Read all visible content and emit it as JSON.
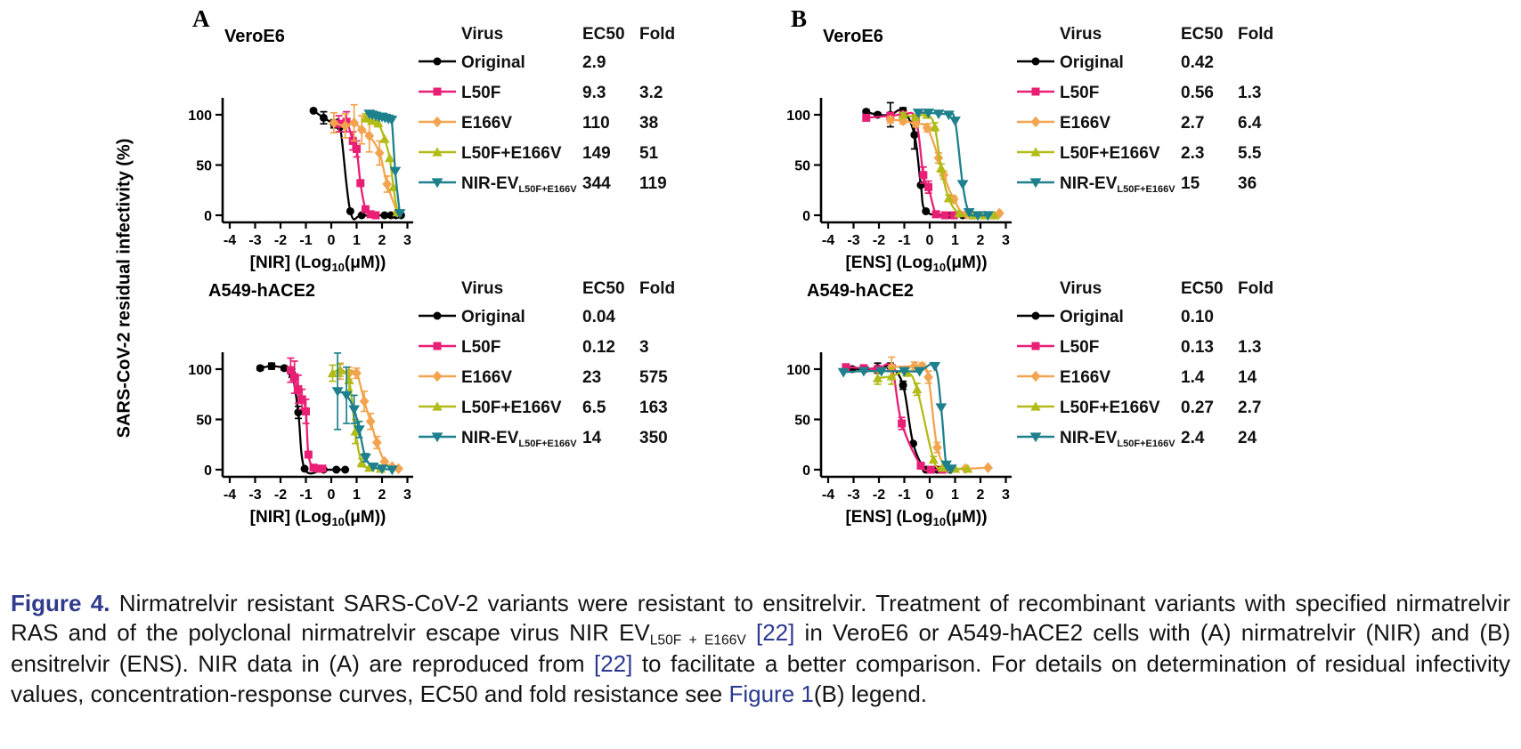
{
  "figure": {
    "panel_a_label": "A",
    "panel_b_label": "B",
    "y_axis_label": "SARS-CoV-2 residual infectivity (%)",
    "legend_headers": {
      "virus": "Virus",
      "ec50": "EC50",
      "fold": "Fold"
    }
  },
  "colors": {
    "original": "#000000",
    "l50f": "#E91E75",
    "e166v": "#F3A44F",
    "l50f_e166v": "#B2BB17",
    "nir_ev": "#1E808D",
    "figure_label": "#2F3B8B",
    "link": "#2B3990",
    "axis": "#000000"
  },
  "chart_data": [
    {
      "type": "line",
      "panel": "A",
      "title": "VeroE6",
      "xlabel": {
        "pre": "[NIR] (Log",
        "sub": "10",
        "post": "(μM))"
      },
      "xticks": [
        -4,
        -3,
        -2,
        -1,
        0,
        1,
        2,
        3
      ],
      "yticks": [
        0,
        50,
        100
      ],
      "xlim": [
        -4,
        3
      ],
      "ylim": [
        0,
        115
      ],
      "series": [
        {
          "name": "Original",
          "name_sub": "",
          "ec50": "2.9",
          "fold": "",
          "color_key": "original",
          "marker": "circle",
          "x": [
            -0.7,
            -0.3,
            0.1,
            0.35,
            0.75,
            1.2,
            2.1,
            2.35,
            2.55,
            2.75
          ],
          "y": [
            104,
            97,
            91,
            88,
            4,
            0,
            0,
            0,
            0,
            0
          ],
          "err": [
            0,
            6,
            4,
            5,
            0,
            0,
            0,
            0,
            0,
            0
          ]
        },
        {
          "name": "L50F",
          "name_sub": "",
          "ec50": "9.3",
          "fold": "3.2",
          "color_key": "l50f",
          "marker": "square",
          "x": [
            0.3,
            0.6,
            0.85,
            1.0,
            1.15,
            1.35,
            1.55,
            1.75
          ],
          "y": [
            91,
            93,
            74,
            66,
            32,
            6,
            1,
            0
          ],
          "err": [
            8,
            10,
            9,
            8,
            0,
            0,
            0,
            0
          ]
        },
        {
          "name": "E166V",
          "name_sub": "",
          "ec50": "110",
          "fold": "38",
          "color_key": "e166v",
          "marker": "diamond",
          "x": [
            0.1,
            0.55,
            0.9,
            1.2,
            1.5,
            1.9,
            2.2,
            2.6
          ],
          "y": [
            92,
            89,
            92,
            85,
            79,
            62,
            31,
            3
          ],
          "err": [
            10,
            12,
            18,
            14,
            16,
            12,
            8,
            0
          ]
        },
        {
          "name": "L50F+E166V",
          "name_sub": "",
          "ec50": "149",
          "fold": "51",
          "color_key": "l50f_e166v",
          "marker": "triangle-up",
          "x": [
            1.35,
            1.6,
            1.85,
            2.1,
            2.3,
            2.45,
            2.6
          ],
          "y": [
            97,
            94,
            92,
            76,
            57,
            28,
            3
          ],
          "err": [
            4,
            3,
            4,
            0,
            0,
            0,
            0
          ]
        },
        {
          "name": "NIR-EV",
          "name_sub": "L50F+E166V",
          "ec50": "344",
          "fold": "119",
          "color_key": "nir_ev",
          "marker": "triangle-down",
          "x": [
            1.5,
            1.62,
            1.75,
            1.88,
            2.0,
            2.12,
            2.25,
            2.38,
            2.52,
            2.7
          ],
          "y": [
            101,
            100,
            99,
            98,
            98,
            97,
            96,
            95,
            44,
            2
          ],
          "err": [
            0,
            0,
            0,
            0,
            0,
            0,
            0,
            0,
            0,
            0
          ]
        }
      ]
    },
    {
      "type": "line",
      "panel": "A",
      "title": "A549-hACE2",
      "xlabel": {
        "pre": "[NIR] (Log",
        "sub": "10",
        "post": "(μM))"
      },
      "xticks": [
        -4,
        -3,
        -2,
        -1,
        0,
        1,
        2,
        3
      ],
      "yticks": [
        0,
        50,
        100
      ],
      "xlim": [
        -4,
        3
      ],
      "ylim": [
        0,
        115
      ],
      "series": [
        {
          "name": "Original",
          "name_sub": "",
          "ec50": "0.04",
          "fold": "",
          "color_key": "original",
          "marker": "circle",
          "x": [
            -2.8,
            -2.35,
            -1.85,
            -1.55,
            -1.3,
            -1.05,
            -0.3,
            0.2,
            0.55
          ],
          "y": [
            101,
            103,
            101,
            96,
            57,
            1,
            0,
            0,
            0
          ],
          "err": [
            2,
            3,
            2,
            4,
            6,
            0,
            0,
            0,
            0
          ]
        },
        {
          "name": "L50F",
          "name_sub": "",
          "ec50": "0.12",
          "fold": "3",
          "color_key": "l50f",
          "marker": "square",
          "x": [
            -1.6,
            -1.45,
            -1.3,
            -1.15,
            -1.0,
            -0.9,
            -0.7,
            -0.5,
            -0.35
          ],
          "y": [
            99,
            92,
            80,
            70,
            58,
            15,
            2,
            1,
            1
          ],
          "err": [
            12,
            16,
            14,
            10,
            12,
            0,
            0,
            0,
            0
          ]
        },
        {
          "name": "E166V",
          "name_sub": "",
          "ec50": "23",
          "fold": "575",
          "color_key": "e166v",
          "marker": "diamond",
          "x": [
            0.35,
            0.7,
            1.0,
            1.3,
            1.55,
            1.8,
            2.1,
            2.4,
            2.65
          ],
          "y": [
            98,
            96,
            96,
            68,
            48,
            27,
            8,
            3,
            1
          ],
          "err": [
            8,
            6,
            5,
            10,
            8,
            6,
            0,
            0,
            0
          ]
        },
        {
          "name": "L50F+E166V",
          "name_sub": "",
          "ec50": "6.5",
          "fold": "163",
          "color_key": "l50f_e166v",
          "marker": "triangle-up",
          "x": [
            0.05,
            0.35,
            0.7,
            0.95,
            1.2,
            1.5,
            1.95
          ],
          "y": [
            96,
            99,
            89,
            38,
            7,
            2,
            1
          ],
          "err": [
            8,
            6,
            10,
            12,
            4,
            0,
            0
          ]
        },
        {
          "name": "NIR-EV",
          "name_sub": "L50F+E166V",
          "ec50": "14",
          "fold": "350",
          "color_key": "nir_ev",
          "marker": "triangle-down",
          "x": [
            0.25,
            0.6,
            0.9,
            1.1,
            1.35,
            1.65,
            2.0,
            2.4
          ],
          "y": [
            78,
            74,
            60,
            40,
            12,
            3,
            1,
            0
          ],
          "err": [
            38,
            28,
            14,
            8,
            4,
            0,
            0,
            0
          ]
        }
      ]
    },
    {
      "type": "line",
      "panel": "B",
      "title": "VeroE6",
      "xlabel": {
        "pre": "[ENS] (Log",
        "sub": "10",
        "post": "(μM))"
      },
      "xticks": [
        -4,
        -3,
        -2,
        -1,
        0,
        1,
        2,
        3
      ],
      "yticks": [
        0,
        50,
        100
      ],
      "xlim": [
        -4,
        3
      ],
      "ylim": [
        0,
        115
      ],
      "series": [
        {
          "name": "Original",
          "name_sub": "",
          "ec50": "0.42",
          "fold": "",
          "color_key": "original",
          "marker": "circle",
          "x": [
            -2.5,
            -2.05,
            -1.55,
            -1.05,
            -0.6,
            -0.35,
            -0.15,
            0.7,
            1.3
          ],
          "y": [
            103,
            100,
            100,
            104,
            80,
            30,
            4,
            0,
            0
          ],
          "err": [
            2,
            2,
            12,
            3,
            14,
            0,
            0,
            0,
            0
          ]
        },
        {
          "name": "L50F",
          "name_sub": "",
          "ec50": "0.56",
          "fold": "1.3",
          "color_key": "l50f",
          "marker": "square",
          "x": [
            -2.5,
            -1.55,
            -1.05,
            -0.55,
            -0.25,
            -0.05,
            0.25,
            0.6,
            0.95
          ],
          "y": [
            97,
            99,
            100,
            96,
            40,
            28,
            1,
            0,
            0
          ],
          "err": [
            3,
            3,
            2,
            3,
            8,
            6,
            0,
            0,
            0
          ]
        },
        {
          "name": "E166V",
          "name_sub": "",
          "ec50": "2.7",
          "fold": "6.4",
          "color_key": "e166v",
          "marker": "diamond",
          "x": [
            -1.55,
            -1.05,
            -0.55,
            -0.1,
            0.35,
            0.55,
            0.95,
            1.45,
            2.75
          ],
          "y": [
            95,
            94,
            91,
            87,
            57,
            40,
            16,
            1,
            2
          ],
          "err": [
            3,
            3,
            3,
            4,
            5,
            4,
            3,
            0,
            0
          ]
        },
        {
          "name": "L50F+E166V",
          "name_sub": "",
          "ec50": "2.3",
          "fold": "5.5",
          "color_key": "l50f_e166v",
          "marker": "triangle-up",
          "x": [
            -1.05,
            -0.55,
            -0.1,
            0.2,
            0.45,
            0.75,
            1.15,
            1.7,
            2.15,
            2.55
          ],
          "y": [
            100,
            98,
            100,
            88,
            47,
            17,
            2,
            0,
            0,
            0
          ],
          "err": [
            2,
            2,
            3,
            4,
            4,
            3,
            0,
            0,
            0,
            0
          ]
        },
        {
          "name": "NIR-EV",
          "name_sub": "L50F+E166V",
          "ec50": "15",
          "fold": "36",
          "color_key": "nir_ev",
          "marker": "triangle-down",
          "x": [
            -0.45,
            -0.05,
            0.35,
            0.75,
            1.0,
            1.3,
            1.55,
            1.9,
            2.3
          ],
          "y": [
            102,
            102,
            101,
            100,
            94,
            31,
            3,
            0,
            0
          ],
          "err": [
            0,
            0,
            0,
            0,
            0,
            0,
            0,
            0,
            0
          ]
        }
      ]
    },
    {
      "type": "line",
      "panel": "B",
      "title": "A549-hACE2",
      "xlabel": {
        "pre": "[ENS] (Log",
        "sub": "10",
        "post": "(μM))"
      },
      "xticks": [
        -4,
        -3,
        -2,
        -1,
        0,
        1,
        2,
        3
      ],
      "yticks": [
        0,
        50,
        100
      ],
      "xlim": [
        -4,
        3
      ],
      "ylim": [
        0,
        115
      ],
      "series": [
        {
          "name": "Original",
          "name_sub": "",
          "ec50": "0.10",
          "fold": "",
          "color_key": "original",
          "marker": "circle",
          "x": [
            -3.05,
            -2.55,
            -2.05,
            -1.55,
            -1.05,
            -0.65,
            -0.15,
            0.3,
            0.8
          ],
          "y": [
            100,
            100,
            101,
            102,
            84,
            26,
            0,
            0,
            0
          ],
          "err": [
            2,
            2,
            5,
            4,
            4,
            0,
            0,
            0,
            0
          ]
        },
        {
          "name": "L50F",
          "name_sub": "",
          "ec50": "0.13",
          "fold": "1.3",
          "color_key": "l50f",
          "marker": "square",
          "x": [
            -3.3,
            -2.6,
            -2.05,
            -1.5,
            -1.1,
            -0.35,
            0.05,
            0.5
          ],
          "y": [
            102,
            101,
            100,
            101,
            46,
            4,
            0,
            0
          ],
          "err": [
            3,
            2,
            2,
            3,
            6,
            0,
            0,
            0
          ]
        },
        {
          "name": "E166V",
          "name_sub": "",
          "ec50": "1.4",
          "fold": "14",
          "color_key": "e166v",
          "marker": "diamond",
          "x": [
            -1.5,
            -0.6,
            -0.3,
            -0.05,
            0.3,
            0.75,
            1.4,
            2.3
          ],
          "y": [
            102,
            103,
            103,
            92,
            22,
            2,
            1,
            2
          ],
          "err": [
            10,
            4,
            3,
            6,
            5,
            0,
            0,
            0
          ]
        },
        {
          "name": "L50F+E166V",
          "name_sub": "",
          "ec50": "0.27",
          "fold": "2.7",
          "color_key": "l50f_e166v",
          "marker": "triangle-up",
          "x": [
            -2.05,
            -1.5,
            -0.9,
            -0.5,
            0.15,
            0.5,
            1.0,
            1.5
          ],
          "y": [
            91,
            93,
            97,
            80,
            10,
            2,
            1,
            1
          ],
          "err": [
            6,
            8,
            4,
            6,
            3,
            0,
            0,
            0
          ]
        },
        {
          "name": "NIR-EV",
          "name_sub": "L50F+E166V",
          "ec50": "2.4",
          "fold": "24",
          "color_key": "nir_ev",
          "marker": "triangle-down",
          "x": [
            -3.4,
            -2.6,
            -1.9,
            -1.0,
            -0.4,
            0.2,
            0.45,
            0.65,
            0.85
          ],
          "y": [
            97,
            98,
            98,
            98,
            98,
            103,
            62,
            5,
            1
          ],
          "err": [
            0,
            0,
            0,
            0,
            0,
            0,
            0,
            0,
            0
          ]
        }
      ]
    }
  ],
  "caption": {
    "segments": [
      {
        "text": "Figure 4.",
        "kind": "label"
      },
      {
        "text": " Nirmatrelvir resistant SARS-CoV-2 variants were resistant to ensitrelvir. Treatment of recombinant variants with specified nirmatrelvir RAS and of the polyclonal nirmatrelvir escape virus NIR EV",
        "kind": "plain"
      },
      {
        "text": "L50F + E166V",
        "kind": "sub"
      },
      {
        "text": " ",
        "kind": "plain"
      },
      {
        "text": "[22]",
        "kind": "link"
      },
      {
        "text": " in VeroE6 or A549-hACE2 cells with (A) nirmatrelvir (NIR) and (B) ensitrelvir (ENS). NIR data in (A) are reproduced from ",
        "kind": "plain"
      },
      {
        "text": "[22]",
        "kind": "link"
      },
      {
        "text": " to facilitate a better comparison. For details on determination of residual infectivity values, concentration-response curves, EC50 and fold resistance see ",
        "kind": "plain"
      },
      {
        "text": "Figure 1",
        "kind": "link"
      },
      {
        "text": "(B) legend.",
        "kind": "plain"
      }
    ]
  }
}
